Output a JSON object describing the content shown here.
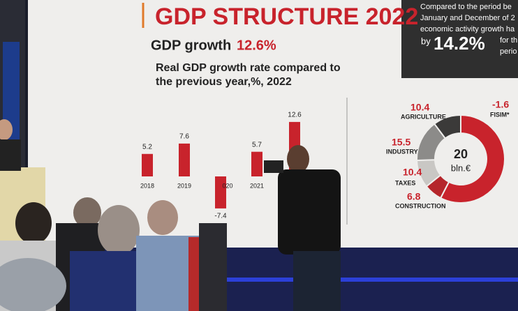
{
  "slide": {
    "title": "GDP STRUCTURE 2022",
    "growth_label": "GDP growth",
    "growth_value": "12.6%",
    "subtitle_lines": [
      "Real GDP growth rate compared to",
      "the previous year,%, 2022"
    ],
    "side_note": {
      "lines": [
        "Compared to the period be",
        "January and December of 2",
        "economic activity growth ha"
      ],
      "by": "by",
      "value": "14.2%",
      "tail": [
        "for th",
        "perio"
      ]
    }
  },
  "chart_data": [
    {
      "type": "bar",
      "categories": [
        "2018",
        "2019",
        "020",
        "2021",
        null
      ],
      "values": [
        5.2,
        7.6,
        -7.4,
        5.7,
        12.6
      ],
      "color": "#c8232c"
    },
    {
      "type": "pie",
      "categories": [
        null,
        "CONSTRUCTION",
        "TAXES",
        "INDUSTRY",
        "AGRICULTURE"
      ],
      "values": [
        58.5,
        6.8,
        10.4,
        15.5,
        10.4
      ],
      "colors": [
        "#c8232c",
        "#b5262b",
        "#c9c7c4",
        "#8c8b89",
        "#3b3a39"
      ],
      "center_value": "20",
      "center_unit": "bln.€",
      "annotation": {
        "label": "FISIM*",
        "value": -1.6
      }
    }
  ]
}
